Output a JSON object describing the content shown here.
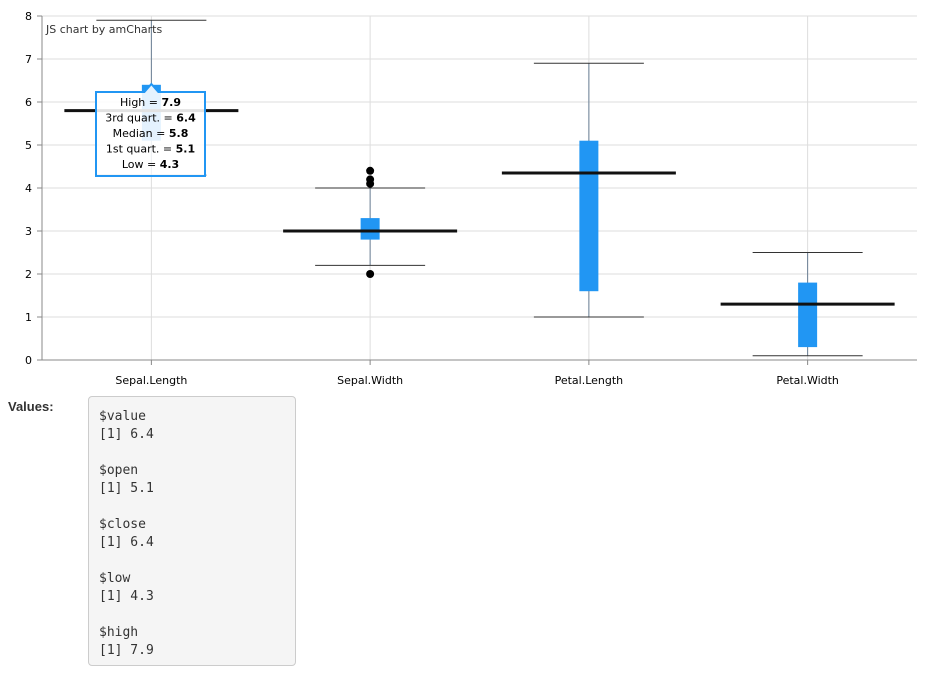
{
  "chart_data": {
    "type": "boxplot",
    "credit": "JS chart by amCharts",
    "ylim": [
      0,
      8
    ],
    "yticks": [
      0,
      1,
      2,
      3,
      4,
      5,
      6,
      7,
      8
    ],
    "grid": true,
    "categories": [
      "Sepal.Length",
      "Sepal.Width",
      "Petal.Length",
      "Petal.Width"
    ],
    "boxes": [
      {
        "category": "Sepal.Length",
        "low": 4.3,
        "q1": 5.1,
        "median": 5.8,
        "q3": 6.4,
        "high": 7.9,
        "outliers": []
      },
      {
        "category": "Sepal.Width",
        "low": 2.2,
        "q1": 2.8,
        "median": 3.0,
        "q3": 3.3,
        "high": 4.0,
        "outliers": [
          4.1,
          4.2,
          4.4,
          2.0
        ]
      },
      {
        "category": "Petal.Length",
        "low": 1.0,
        "q1": 1.6,
        "median": 4.35,
        "q3": 5.1,
        "high": 6.9,
        "outliers": []
      },
      {
        "category": "Petal.Width",
        "low": 0.1,
        "q1": 0.3,
        "median": 1.3,
        "q3": 1.8,
        "high": 2.5,
        "outliers": []
      }
    ],
    "colors": {
      "box": "#2196f3",
      "median": "#111111",
      "whisker": "#333333",
      "grid": "#dddddd",
      "axis": "#888888",
      "tooltip_border": "#2196f3"
    },
    "tooltip": {
      "lines": [
        {
          "label": "High = ",
          "value": "7.9"
        },
        {
          "label": "3rd quart. = ",
          "value": "6.4"
        },
        {
          "label": "Median = ",
          "value": "5.8"
        },
        {
          "label": "1st quart. = ",
          "value": "5.1"
        },
        {
          "label": "Low = ",
          "value": "4.3"
        }
      ]
    }
  },
  "values_panel": {
    "label": "Values:",
    "entries": [
      {
        "name": "$value",
        "line": "[1] 6.4"
      },
      {
        "name": "$open",
        "line": "[1] 5.1"
      },
      {
        "name": "$close",
        "line": "[1] 6.4"
      },
      {
        "name": "$low",
        "line": "[1] 4.3"
      },
      {
        "name": "$high",
        "line": "[1] 7.9"
      }
    ]
  }
}
